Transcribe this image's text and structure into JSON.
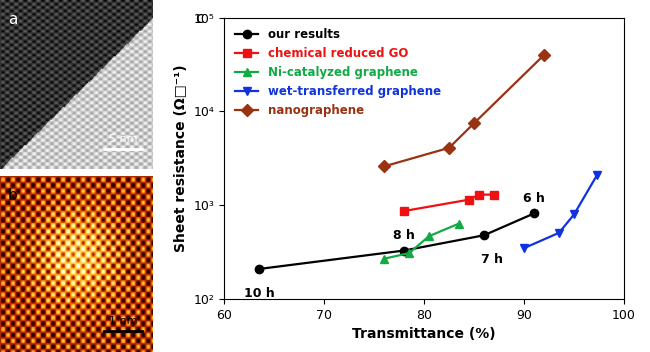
{
  "chart_data": {
    "type": "line",
    "panel_label": "c",
    "x_label": "Transmittance (%)",
    "y_label": "Sheet resistance (Ω□⁻¹)",
    "log": "y",
    "legend": "upper left",
    "xlim": [
      60,
      100
    ],
    "xticks": [
      60,
      70,
      80,
      90,
      100
    ],
    "ylim": [
      100,
      100000
    ],
    "yticks": [
      {
        "value": 100,
        "label": "10²"
      },
      {
        "value": 1000,
        "label": "10³"
      },
      {
        "value": 10000,
        "label": "10⁴"
      },
      {
        "value": 100000,
        "label": "10⁵"
      }
    ],
    "series": [
      {
        "name": "our results",
        "color": "#000000",
        "marker": "circle",
        "x": [
          63.5,
          78,
          86,
          91
        ],
        "values": [
          210,
          330,
          480,
          820
        ],
        "point_labels": [
          "10 h",
          "8 h",
          "7 h",
          "6 h"
        ]
      },
      {
        "name": "chemical reduced GO",
        "color": "#ee1111",
        "marker": "square",
        "x": [
          78,
          84.5,
          85.5,
          87
        ],
        "values": [
          870,
          1150,
          1300,
          1300
        ]
      },
      {
        "name": "Ni-catalyzed graphene",
        "color": "#11aa44",
        "marker": "triangle_up",
        "x": [
          76,
          78.5,
          80.5,
          83.5
        ],
        "values": [
          270,
          310,
          470,
          640
        ]
      },
      {
        "name": "wet-transferred graphene",
        "color": "#1133dd",
        "marker": "triangle_down",
        "x": [
          90,
          93.5,
          95,
          97.3
        ],
        "values": [
          350,
          510,
          800,
          2100
        ]
      },
      {
        "name": "nanographene",
        "color": "#993311",
        "marker": "diamond",
        "x": [
          76,
          82.5,
          85,
          92
        ],
        "values": [
          2600,
          4100,
          7500,
          40000
        ]
      }
    ]
  },
  "images": [
    {
      "label": "a",
      "scale_bar": "5 nm"
    },
    {
      "label": "b",
      "scale_bar": "1 nm"
    }
  ]
}
